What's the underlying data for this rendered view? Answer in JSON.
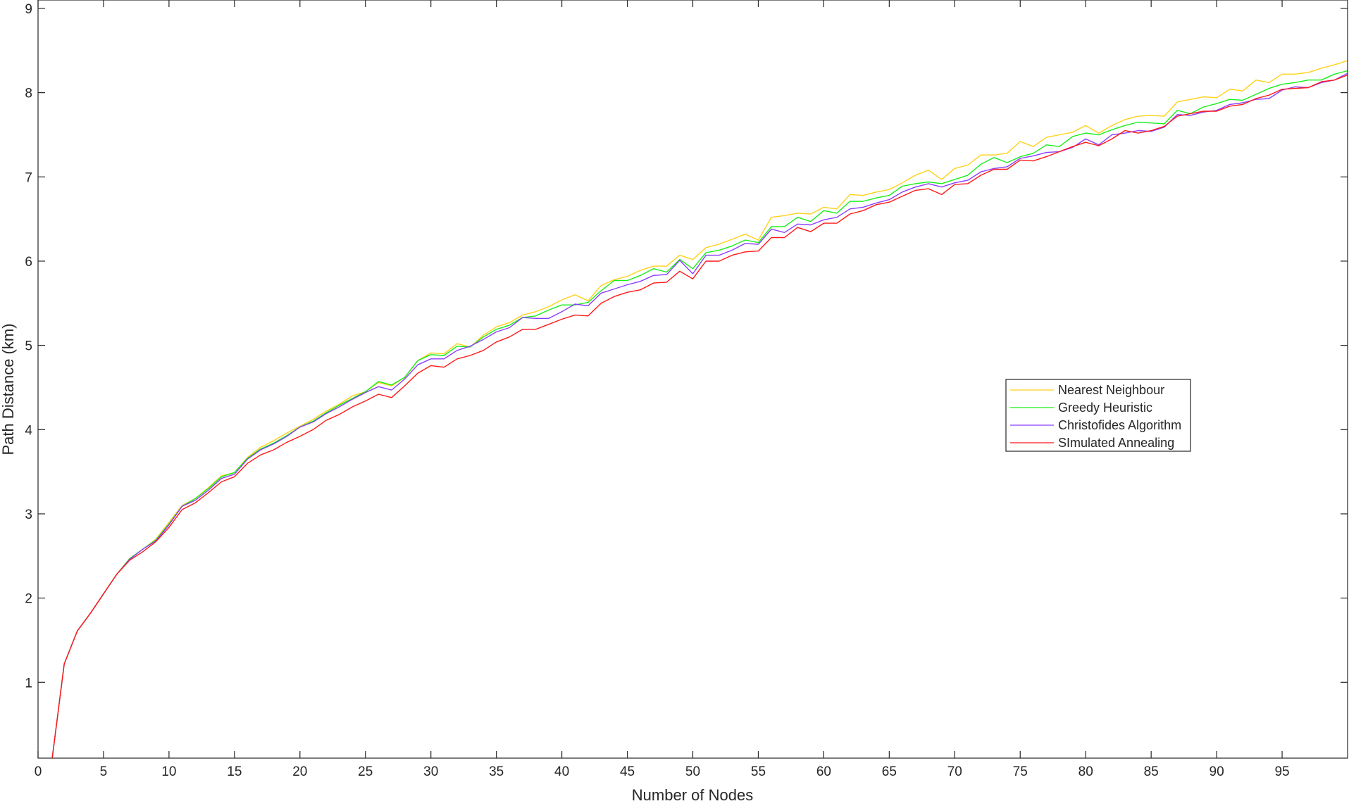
{
  "chart_data": {
    "type": "line",
    "xlabel": "Number of Nodes",
    "ylabel": "Path Distance (km)",
    "xlim": [
      0,
      100
    ],
    "ylim": [
      0.1,
      9.1
    ],
    "xticks": [
      0,
      5,
      10,
      15,
      20,
      25,
      30,
      35,
      40,
      45,
      50,
      55,
      60,
      65,
      70,
      75,
      80,
      85,
      90,
      95
    ],
    "yticks": [
      1,
      2,
      3,
      4,
      5,
      6,
      7,
      8,
      9
    ],
    "grid": false,
    "legend_position": "right, mid-height",
    "x": [
      1,
      2,
      3,
      4,
      5,
      6,
      7,
      8,
      9,
      10,
      11,
      12,
      13,
      14,
      15,
      16,
      17,
      18,
      19,
      20,
      21,
      22,
      23,
      24,
      25,
      26,
      27,
      28,
      29,
      30,
      31,
      32,
      33,
      34,
      35,
      36,
      37,
      38,
      39,
      40,
      41,
      42,
      43,
      44,
      45,
      46,
      47,
      48,
      49,
      50,
      51,
      52,
      53,
      54,
      55,
      56,
      57,
      58,
      59,
      60,
      61,
      62,
      63,
      64,
      65,
      66,
      67,
      68,
      69,
      70,
      71,
      72,
      73,
      74,
      75,
      76,
      77,
      78,
      79,
      80,
      81,
      82,
      83,
      84,
      85,
      86,
      87,
      88,
      89,
      90,
      91,
      92,
      93,
      94,
      95,
      96,
      97,
      98,
      99,
      100
    ],
    "series": [
      {
        "name": "Nearest Neighbour",
        "color": "#ffd119",
        "values": [
          0,
          1.22,
          1.61,
          1.82,
          2.05,
          2.28,
          2.47,
          2.58,
          2.7,
          2.9,
          3.1,
          3.18,
          3.31,
          3.45,
          3.49,
          3.67,
          3.79,
          3.87,
          3.96,
          4.04,
          4.12,
          4.22,
          4.3,
          4.4,
          4.45,
          4.56,
          4.52,
          4.62,
          4.82,
          4.91,
          4.9,
          5.02,
          4.98,
          5.12,
          5.22,
          5.27,
          5.36,
          5.4,
          5.46,
          5.54,
          5.6,
          5.53,
          5.71,
          5.78,
          5.82,
          5.89,
          5.94,
          5.94,
          6.07,
          6.02,
          6.16,
          6.2,
          6.26,
          6.32,
          6.25,
          6.52,
          6.54,
          6.57,
          6.56,
          6.64,
          6.62,
          6.79,
          6.78,
          6.82,
          6.85,
          6.93,
          7.02,
          7.08,
          6.97,
          7.1,
          7.14,
          7.26,
          7.26,
          7.28,
          7.42,
          7.36,
          7.47,
          7.5,
          7.53,
          7.61,
          7.52,
          7.61,
          7.68,
          7.72,
          7.73,
          7.72,
          7.89,
          7.92,
          7.95,
          7.94,
          8.04,
          8.02,
          8.15,
          8.12,
          8.22,
          8.22,
          8.24,
          8.29,
          8.33,
          8.38
        ]
      },
      {
        "name": "Greedy Heuristic",
        "color": "#19ef19",
        "values": [
          0,
          1.22,
          1.61,
          1.82,
          2.05,
          2.28,
          2.47,
          2.58,
          2.69,
          2.88,
          3.09,
          3.18,
          3.3,
          3.44,
          3.49,
          3.66,
          3.77,
          3.84,
          3.93,
          4.03,
          4.1,
          4.2,
          4.29,
          4.37,
          4.45,
          4.57,
          4.53,
          4.62,
          4.82,
          4.89,
          4.88,
          4.99,
          4.98,
          5.1,
          5.19,
          5.24,
          5.33,
          5.35,
          5.42,
          5.48,
          5.48,
          5.51,
          5.65,
          5.77,
          5.77,
          5.83,
          5.91,
          5.87,
          6.02,
          5.91,
          6.1,
          6.13,
          6.18,
          6.25,
          6.22,
          6.41,
          6.41,
          6.52,
          6.47,
          6.6,
          6.57,
          6.71,
          6.71,
          6.75,
          6.78,
          6.89,
          6.92,
          6.94,
          6.92,
          6.97,
          7.02,
          7.15,
          7.23,
          7.17,
          7.24,
          7.28,
          7.38,
          7.36,
          7.48,
          7.52,
          7.5,
          7.56,
          7.61,
          7.65,
          7.64,
          7.63,
          7.79,
          7.75,
          7.83,
          7.87,
          7.92,
          7.91,
          7.98,
          8.05,
          8.1,
          8.12,
          8.15,
          8.15,
          8.22,
          8.26
        ]
      },
      {
        "name": "Christofides Algorithm",
        "color": "#8c3eff",
        "values": [
          0,
          1.22,
          1.61,
          1.82,
          2.05,
          2.28,
          2.46,
          2.58,
          2.68,
          2.87,
          3.09,
          3.16,
          3.28,
          3.42,
          3.47,
          3.65,
          3.76,
          3.83,
          3.92,
          4.03,
          4.09,
          4.19,
          4.27,
          4.36,
          4.44,
          4.51,
          4.47,
          4.6,
          4.77,
          4.84,
          4.84,
          4.94,
          4.99,
          5.07,
          5.16,
          5.21,
          5.33,
          5.32,
          5.32,
          5.4,
          5.49,
          5.47,
          5.62,
          5.67,
          5.72,
          5.76,
          5.83,
          5.84,
          6.01,
          5.85,
          6.07,
          6.07,
          6.13,
          6.21,
          6.2,
          6.38,
          6.34,
          6.44,
          6.43,
          6.49,
          6.52,
          6.62,
          6.64,
          6.69,
          6.73,
          6.82,
          6.88,
          6.92,
          6.88,
          6.93,
          6.96,
          7.06,
          7.1,
          7.12,
          7.22,
          7.25,
          7.29,
          7.3,
          7.35,
          7.45,
          7.38,
          7.5,
          7.52,
          7.55,
          7.54,
          7.59,
          7.74,
          7.73,
          7.77,
          7.79,
          7.86,
          7.88,
          7.92,
          7.93,
          8.03,
          8.07,
          8.06,
          8.12,
          8.15,
          8.23
        ]
      },
      {
        "name": "SImulated Annealing",
        "color": "#ff1919",
        "values": [
          0,
          1.22,
          1.61,
          1.82,
          2.05,
          2.28,
          2.45,
          2.55,
          2.67,
          2.84,
          3.05,
          3.13,
          3.25,
          3.38,
          3.44,
          3.6,
          3.7,
          3.76,
          3.85,
          3.92,
          4.0,
          4.11,
          4.18,
          4.27,
          4.34,
          4.42,
          4.38,
          4.52,
          4.67,
          4.76,
          4.74,
          4.84,
          4.88,
          4.94,
          5.04,
          5.1,
          5.19,
          5.19,
          5.25,
          5.31,
          5.36,
          5.35,
          5.5,
          5.58,
          5.63,
          5.66,
          5.74,
          5.75,
          5.88,
          5.79,
          6.0,
          6.0,
          6.07,
          6.11,
          6.12,
          6.28,
          6.28,
          6.4,
          6.35,
          6.45,
          6.45,
          6.56,
          6.6,
          6.67,
          6.7,
          6.77,
          6.84,
          6.86,
          6.79,
          6.91,
          6.92,
          7.02,
          7.09,
          7.09,
          7.2,
          7.19,
          7.24,
          7.3,
          7.36,
          7.41,
          7.37,
          7.45,
          7.55,
          7.52,
          7.55,
          7.6,
          7.72,
          7.75,
          7.78,
          7.78,
          7.84,
          7.86,
          7.93,
          7.97,
          8.04,
          8.05,
          8.06,
          8.13,
          8.15,
          8.21
        ]
      }
    ]
  }
}
